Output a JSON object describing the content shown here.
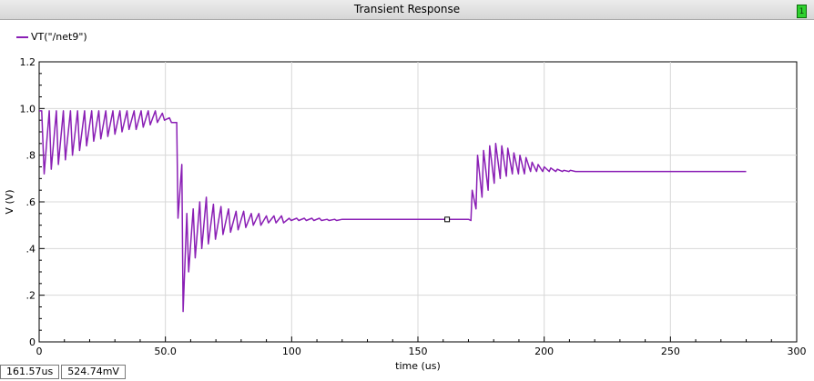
{
  "window": {
    "title": "Transient Response",
    "badge": "1"
  },
  "legend": {
    "label": "VT(\"/net9\")",
    "color": "#8a1fb5"
  },
  "readout": {
    "x": "161.57us",
    "y": "524.74mV"
  },
  "chart_data": {
    "type": "line",
    "xlabel": "time (us)",
    "ylabel": "V (V)",
    "xlim": [
      0,
      300
    ],
    "ylim": [
      0,
      1.2
    ],
    "x_ticks": [
      0,
      50,
      100,
      150,
      200,
      250,
      300
    ],
    "x_tick_labels": [
      "0",
      "50.0",
      "100",
      "150",
      "200",
      "250",
      "300"
    ],
    "y_ticks": [
      0,
      0.2,
      0.4,
      0.6,
      0.8,
      1.0,
      1.2
    ],
    "y_tick_labels": [
      "0",
      ".2",
      ".4",
      ".6",
      ".8",
      "1.0",
      "1.2"
    ],
    "grid": true,
    "marker_point": {
      "x": 161.57,
      "y": 0.52474
    },
    "series": [
      {
        "name": "VT(\"/net9\")",
        "color": "#8a1fb5",
        "x": [
          0,
          1,
          2,
          4,
          4.8,
          6.8,
          7.6,
          9.6,
          10.4,
          12.4,
          13.2,
          15.2,
          16,
          18,
          18.8,
          20.8,
          21.6,
          23.6,
          24.4,
          26.4,
          27.2,
          29.2,
          30,
          32,
          32.8,
          34.8,
          35.6,
          37.6,
          38.4,
          40.4,
          41.2,
          43.2,
          44,
          46,
          46.8,
          48.8,
          49.6,
          51.6,
          52.4,
          54.5,
          55,
          56.5,
          57,
          58.5,
          59.2,
          61,
          61.8,
          63.6,
          64.4,
          66.2,
          67,
          69,
          69.8,
          72,
          72.8,
          75,
          75.8,
          78,
          78.8,
          81,
          81.8,
          84,
          84.8,
          87,
          87.8,
          90,
          90.8,
          93,
          93.8,
          96,
          96.8,
          99,
          99.8,
          102,
          102.8,
          105,
          105.8,
          108,
          108.8,
          111,
          111.8,
          114,
          114.8,
          117,
          117.8,
          120,
          130,
          140,
          150,
          160,
          170,
          171,
          171.5,
          173,
          173.6,
          175.4,
          176,
          177.8,
          178.4,
          180.2,
          180.8,
          182.6,
          183.2,
          185,
          185.6,
          187.4,
          188,
          189.8,
          190.4,
          192.2,
          192.8,
          194.6,
          195.2,
          197,
          197.6,
          199.4,
          200,
          202,
          202.6,
          204.6,
          205.2,
          207.2,
          207.8,
          209.8,
          210.4,
          212.4,
          213,
          215,
          220,
          230,
          240,
          250,
          260,
          270,
          280
        ],
        "y": [
          0.99,
          0.99,
          0.72,
          0.99,
          0.74,
          0.99,
          0.76,
          0.99,
          0.78,
          0.99,
          0.8,
          0.99,
          0.82,
          0.99,
          0.84,
          0.99,
          0.86,
          0.99,
          0.87,
          0.99,
          0.88,
          0.99,
          0.89,
          0.99,
          0.9,
          0.99,
          0.91,
          0.99,
          0.91,
          0.99,
          0.92,
          0.99,
          0.93,
          0.99,
          0.94,
          0.98,
          0.95,
          0.96,
          0.94,
          0.94,
          0.53,
          0.76,
          0.13,
          0.55,
          0.3,
          0.57,
          0.36,
          0.6,
          0.4,
          0.62,
          0.42,
          0.59,
          0.44,
          0.58,
          0.46,
          0.57,
          0.47,
          0.56,
          0.48,
          0.56,
          0.49,
          0.55,
          0.5,
          0.55,
          0.5,
          0.54,
          0.51,
          0.54,
          0.51,
          0.54,
          0.51,
          0.53,
          0.52,
          0.53,
          0.52,
          0.53,
          0.52,
          0.53,
          0.52,
          0.53,
          0.52,
          0.525,
          0.52,
          0.525,
          0.52,
          0.525,
          0.525,
          0.525,
          0.525,
          0.525,
          0.525,
          0.52,
          0.65,
          0.57,
          0.8,
          0.62,
          0.82,
          0.65,
          0.84,
          0.68,
          0.85,
          0.7,
          0.84,
          0.71,
          0.83,
          0.72,
          0.81,
          0.72,
          0.8,
          0.72,
          0.79,
          0.73,
          0.77,
          0.73,
          0.76,
          0.73,
          0.75,
          0.73,
          0.745,
          0.73,
          0.74,
          0.73,
          0.735,
          0.73,
          0.735,
          0.73,
          0.73,
          0.73,
          0.73,
          0.73,
          0.73,
          0.73,
          0.73,
          0.73,
          0.73
        ]
      }
    ]
  }
}
